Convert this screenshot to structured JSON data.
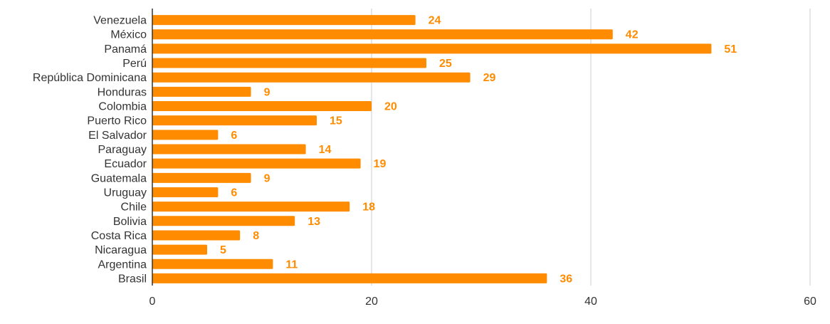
{
  "chart_data": {
    "type": "bar",
    "orientation": "horizontal",
    "categories": [
      "Venezuela",
      "México",
      "Panamá",
      "Perú",
      "República Dominicana",
      "Honduras",
      "Colombia",
      "Puerto Rico",
      "El Salvador",
      "Paraguay",
      "Ecuador",
      "Guatemala",
      "Uruguay",
      "Chile",
      "Bolivia",
      "Costa Rica",
      "Nicaragua",
      "Argentina",
      "Brasil"
    ],
    "values": [
      24,
      42,
      51,
      25,
      29,
      9,
      20,
      15,
      6,
      14,
      19,
      9,
      6,
      18,
      13,
      8,
      5,
      11,
      36
    ],
    "xlim": [
      0,
      60
    ],
    "xticks": [
      "0",
      "20",
      "40",
      "60"
    ],
    "grid": true,
    "data_labels": true,
    "colors": {
      "bar": "#ff8c00",
      "label": "#ff8c00",
      "grid": "#cccccc",
      "axis": "#333333"
    }
  }
}
